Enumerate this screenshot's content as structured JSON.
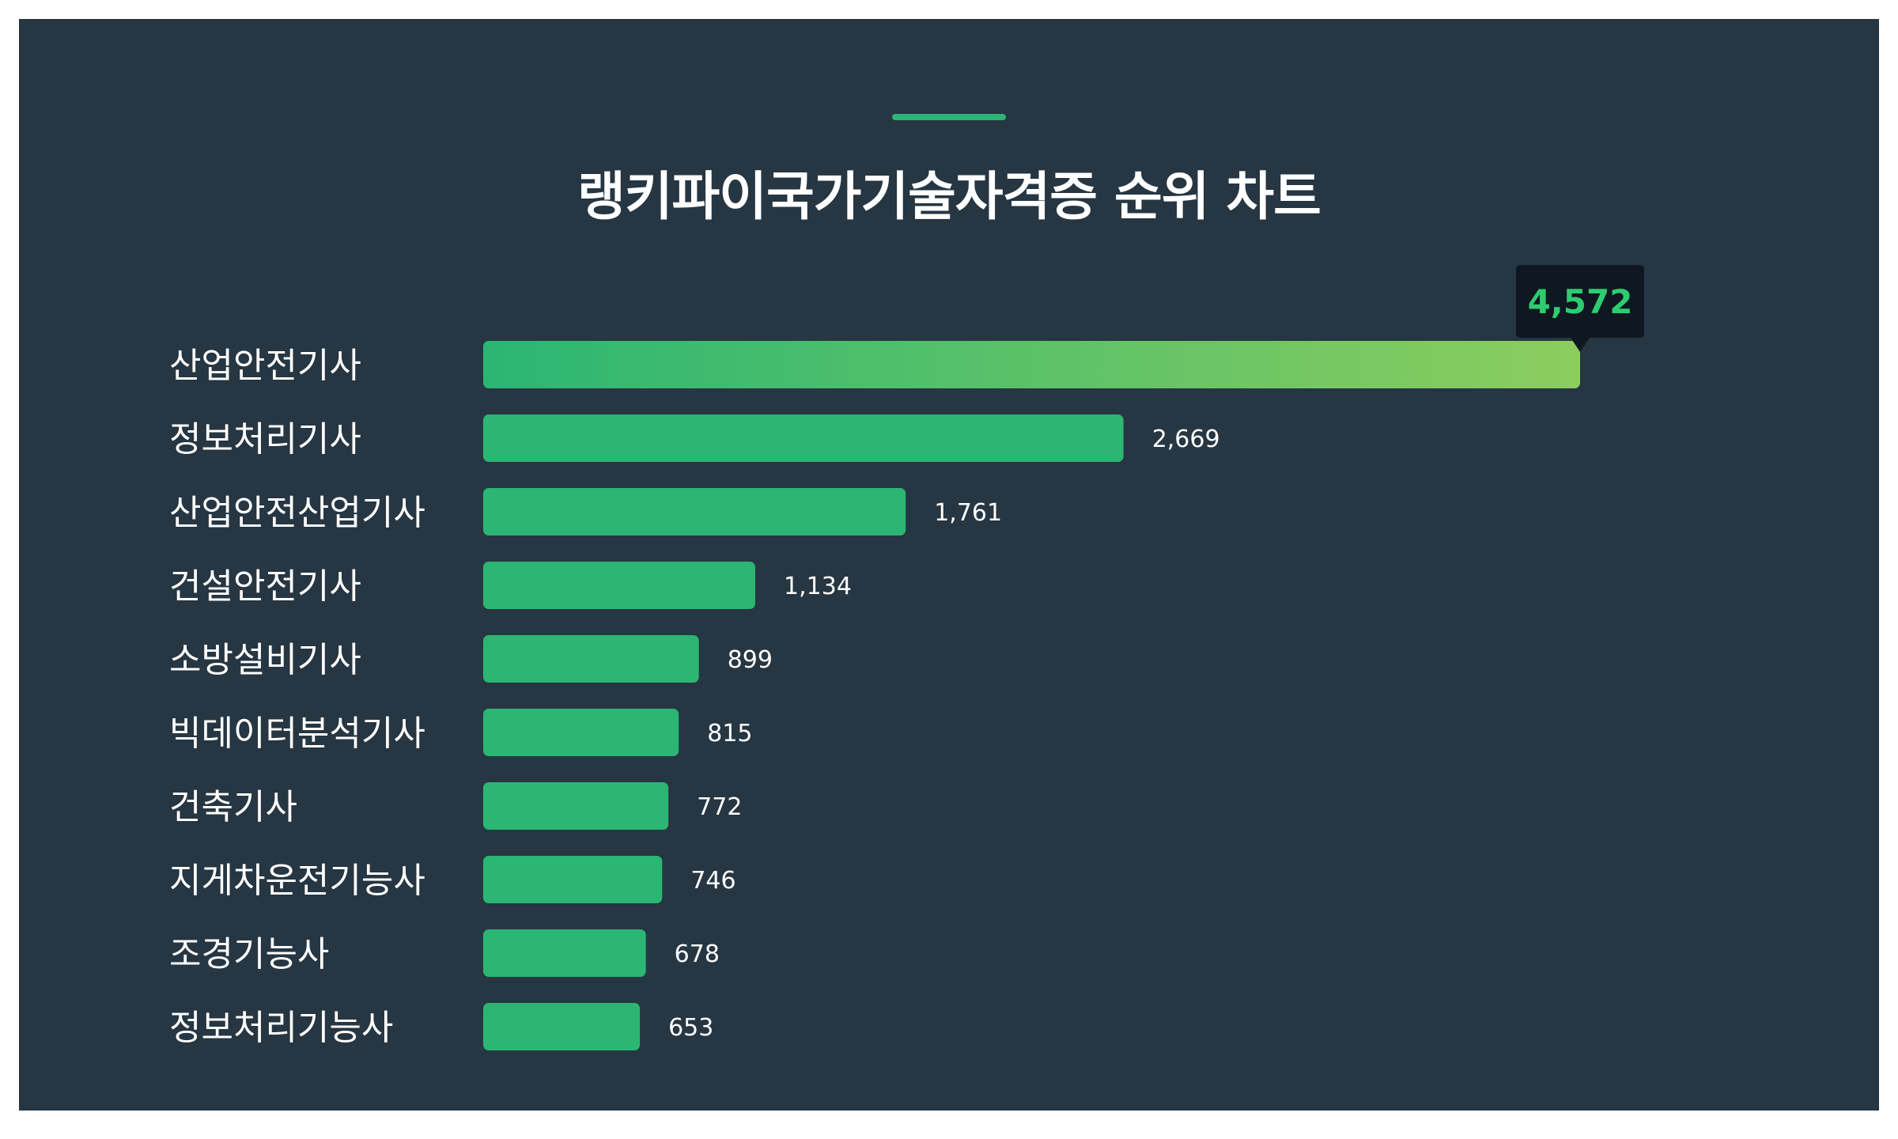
{
  "page": {
    "title": "랭키파이국가기술자격증 순위 차트"
  },
  "colors": {
    "background": "#263642",
    "bar": "#2bb673",
    "top_bar_gradient_start": "#2bb673",
    "top_bar_gradient_end": "#8ccd5e",
    "highlight_text": "#2ecc71",
    "tooltip_background": "#0f1820",
    "label_text": "#ffffff"
  },
  "chart_data": {
    "type": "bar",
    "orientation": "horizontal",
    "title": "랭키파이국가기술자격증 순위 차트",
    "categories": [
      "산업안전기사",
      "정보처리기사",
      "산업안전산업기사",
      "건설안전기사",
      "소방설비기사",
      "빅데이터분석기사",
      "건축기사",
      "지게차운전기능사",
      "조경기능사",
      "정보처리기능사"
    ],
    "values": [
      4572,
      2669,
      1761,
      1134,
      899,
      815,
      772,
      746,
      678,
      653
    ],
    "value_labels": [
      "4,572",
      "2,669",
      "1,761",
      "1,134",
      "899",
      "815",
      "772",
      "746",
      "678",
      "653"
    ],
    "highlighted_index": 0,
    "xlim": [
      0,
      4572
    ],
    "grid": false,
    "legend": "none"
  }
}
